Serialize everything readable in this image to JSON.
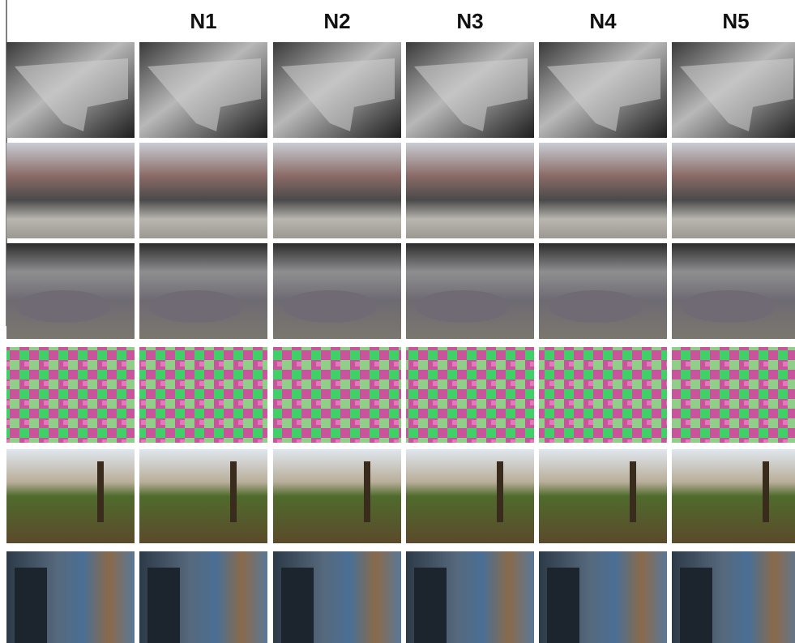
{
  "columns": [
    "N1",
    "N2",
    "N3",
    "N4",
    "N5"
  ]
}
